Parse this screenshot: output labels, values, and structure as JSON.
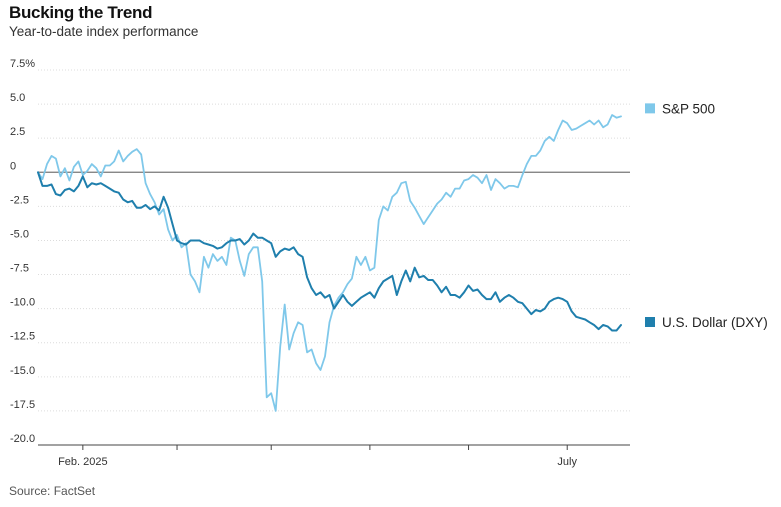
{
  "header": {
    "title": "Bucking the Trend",
    "subtitle": "Year-to-date index performance"
  },
  "footer": {
    "source": "Source: FactSet"
  },
  "chart_data": {
    "type": "line",
    "title": "Bucking the Trend",
    "subtitle": "Year-to-date index performance",
    "xlabel": "",
    "ylabel": "",
    "ylim": [
      -20.0,
      7.5
    ],
    "yticks": [
      {
        "value": 7.5,
        "label": "7.5%"
      },
      {
        "value": 5.0,
        "label": "5.0"
      },
      {
        "value": 2.5,
        "label": "2.5"
      },
      {
        "value": 0,
        "label": "0"
      },
      {
        "value": -2.5,
        "label": "-2.5"
      },
      {
        "value": -5.0,
        "label": "-5.0"
      },
      {
        "value": -7.5,
        "label": "-7.5"
      },
      {
        "value": -10.0,
        "label": "-10.0"
      },
      {
        "value": -12.5,
        "label": "-12.5"
      },
      {
        "value": -15.0,
        "label": "-15.0"
      },
      {
        "value": -17.5,
        "label": "-17.5"
      },
      {
        "value": -20.0,
        "label": "-20.0"
      }
    ],
    "xlim": [
      0,
      132
    ],
    "xticks": [
      {
        "x": 10,
        "label": "Feb. 2025"
      },
      {
        "x": 31,
        "label": ""
      },
      {
        "x": 52,
        "label": ""
      },
      {
        "x": 74,
        "label": ""
      },
      {
        "x": 96,
        "label": ""
      },
      {
        "x": 118,
        "label": "July"
      }
    ],
    "grid": true,
    "legend": "right",
    "series": [
      {
        "name": "S&P 500",
        "color": "#7fc8ea",
        "x": [
          0,
          1,
          2,
          3,
          4,
          5,
          6,
          7,
          8,
          9,
          10,
          11,
          12,
          13,
          14,
          15,
          16,
          17,
          18,
          19,
          20,
          21,
          22,
          23,
          24,
          25,
          26,
          27,
          28,
          29,
          30,
          31,
          32,
          33,
          34,
          35,
          36,
          37,
          38,
          39,
          40,
          41,
          42,
          43,
          44,
          45,
          46,
          47,
          48,
          49,
          50,
          51,
          52,
          53,
          54,
          55,
          56,
          57,
          58,
          59,
          60,
          61,
          62,
          63,
          64,
          65,
          66,
          67,
          68,
          69,
          70,
          71,
          72,
          73,
          74,
          75,
          76,
          77,
          78,
          79,
          80,
          81,
          82,
          83,
          84,
          85,
          86,
          87,
          88,
          89,
          90,
          91,
          92,
          93,
          94,
          95,
          96,
          97,
          98,
          99,
          100,
          101,
          102,
          103,
          104,
          105,
          106,
          107,
          108,
          109,
          110,
          111,
          112,
          113,
          114,
          115,
          116,
          117,
          118,
          119,
          120,
          121,
          122,
          123,
          124,
          125,
          126,
          127,
          128,
          129,
          130
        ],
        "values": [
          0.0,
          -0.5,
          0.6,
          1.2,
          1.0,
          -0.3,
          0.3,
          -0.6,
          0.4,
          0.8,
          -0.2,
          0.1,
          0.6,
          0.3,
          -0.3,
          0.5,
          0.5,
          0.8,
          1.6,
          0.8,
          1.2,
          1.5,
          1.7,
          1.3,
          -0.8,
          -1.6,
          -2.2,
          -3.1,
          -2.7,
          -4.2,
          -5.0,
          -4.6,
          -5.5,
          -5.2,
          -7.5,
          -8.0,
          -8.8,
          -6.2,
          -7.0,
          -6.0,
          -6.5,
          -6.2,
          -6.8,
          -4.8,
          -5.0,
          -6.5,
          -7.6,
          -6.0,
          -5.5,
          -5.5,
          -8.0,
          -16.5,
          -16.2,
          -17.5,
          -12.8,
          -9.7,
          -13.0,
          -11.8,
          -11.0,
          -11.2,
          -13.2,
          -13.0,
          -14.0,
          -14.5,
          -13.5,
          -11.0,
          -9.8,
          -9.2,
          -8.8,
          -8.2,
          -7.8,
          -6.2,
          -6.8,
          -6.2,
          -7.2,
          -7.0,
          -3.5,
          -2.5,
          -2.8,
          -1.8,
          -1.5,
          -0.8,
          -0.7,
          -2.1,
          -2.6,
          -3.2,
          -3.8,
          -3.3,
          -2.8,
          -2.3,
          -2.0,
          -1.5,
          -1.8,
          -1.2,
          -1.2,
          -0.6,
          -0.5,
          -0.2,
          -0.4,
          -0.8,
          -0.2,
          -1.3,
          -0.5,
          -0.8,
          -1.2,
          -1.0,
          -1.0,
          -1.1,
          -0.2,
          0.6,
          1.2,
          1.2,
          1.6,
          2.3,
          2.6,
          2.3,
          3.1,
          3.8,
          3.6,
          3.1,
          3.2,
          3.4,
          3.6,
          3.8,
          3.5,
          3.8,
          3.3,
          3.5,
          4.2,
          4.0,
          4.1
        ]
      },
      {
        "name": "U.S. Dollar (DXY)",
        "color": "#1f7fad",
        "x": [
          0,
          1,
          2,
          3,
          4,
          5,
          6,
          7,
          8,
          9,
          10,
          11,
          12,
          13,
          14,
          15,
          16,
          17,
          18,
          19,
          20,
          21,
          22,
          23,
          24,
          25,
          26,
          27,
          28,
          29,
          30,
          31,
          32,
          33,
          34,
          35,
          36,
          37,
          38,
          39,
          40,
          41,
          42,
          43,
          44,
          45,
          46,
          47,
          48,
          49,
          50,
          51,
          52,
          53,
          54,
          55,
          56,
          57,
          58,
          59,
          60,
          61,
          62,
          63,
          64,
          65,
          66,
          67,
          68,
          69,
          70,
          71,
          72,
          73,
          74,
          75,
          76,
          77,
          78,
          79,
          80,
          81,
          82,
          83,
          84,
          85,
          86,
          87,
          88,
          89,
          90,
          91,
          92,
          93,
          94,
          95,
          96,
          97,
          98,
          99,
          100,
          101,
          102,
          103,
          104,
          105,
          106,
          107,
          108,
          109,
          110,
          111,
          112,
          113,
          114,
          115,
          116,
          117,
          118,
          119,
          120,
          121,
          122,
          123,
          124,
          125,
          126,
          127,
          128,
          129,
          130
        ],
        "values": [
          0.0,
          -1.0,
          -1.0,
          -0.9,
          -1.6,
          -1.7,
          -1.3,
          -1.2,
          -1.4,
          -1.0,
          -0.3,
          -1.1,
          -0.8,
          -0.9,
          -0.8,
          -1.0,
          -1.2,
          -1.4,
          -1.5,
          -2.0,
          -2.2,
          -2.1,
          -2.6,
          -2.6,
          -2.4,
          -2.7,
          -2.5,
          -2.8,
          -1.8,
          -2.6,
          -3.8,
          -5.0,
          -5.2,
          -5.3,
          -5.0,
          -5.0,
          -5.0,
          -5.2,
          -5.3,
          -5.4,
          -5.6,
          -5.5,
          -5.2,
          -5.0,
          -5.0,
          -4.9,
          -5.3,
          -5.0,
          -4.5,
          -4.8,
          -4.8,
          -5.0,
          -5.2,
          -6.2,
          -5.8,
          -5.6,
          -5.7,
          -5.5,
          -6.0,
          -6.2,
          -7.7,
          -8.5,
          -9.0,
          -8.8,
          -9.2,
          -9.0,
          -10.0,
          -9.5,
          -9.0,
          -9.5,
          -9.8,
          -9.5,
          -9.2,
          -9.0,
          -8.8,
          -9.2,
          -8.5,
          -8.0,
          -7.8,
          -7.6,
          -9.0,
          -8.0,
          -7.2,
          -8.0,
          -7.0,
          -7.7,
          -7.6,
          -7.9,
          -7.9,
          -8.3,
          -8.8,
          -8.4,
          -9.0,
          -9.0,
          -9.2,
          -8.8,
          -8.3,
          -8.7,
          -8.6,
          -9.0,
          -9.3,
          -9.3,
          -8.8,
          -9.5,
          -9.2,
          -9.0,
          -9.2,
          -9.5,
          -9.6,
          -10.0,
          -10.4,
          -10.1,
          -10.2,
          -10.0,
          -9.5,
          -9.3,
          -9.2,
          -9.3,
          -9.5,
          -10.2,
          -10.6,
          -10.7,
          -10.8,
          -11.0,
          -11.2,
          -11.5,
          -11.2,
          -11.3,
          -11.6,
          -11.6,
          -11.2
        ]
      }
    ]
  }
}
